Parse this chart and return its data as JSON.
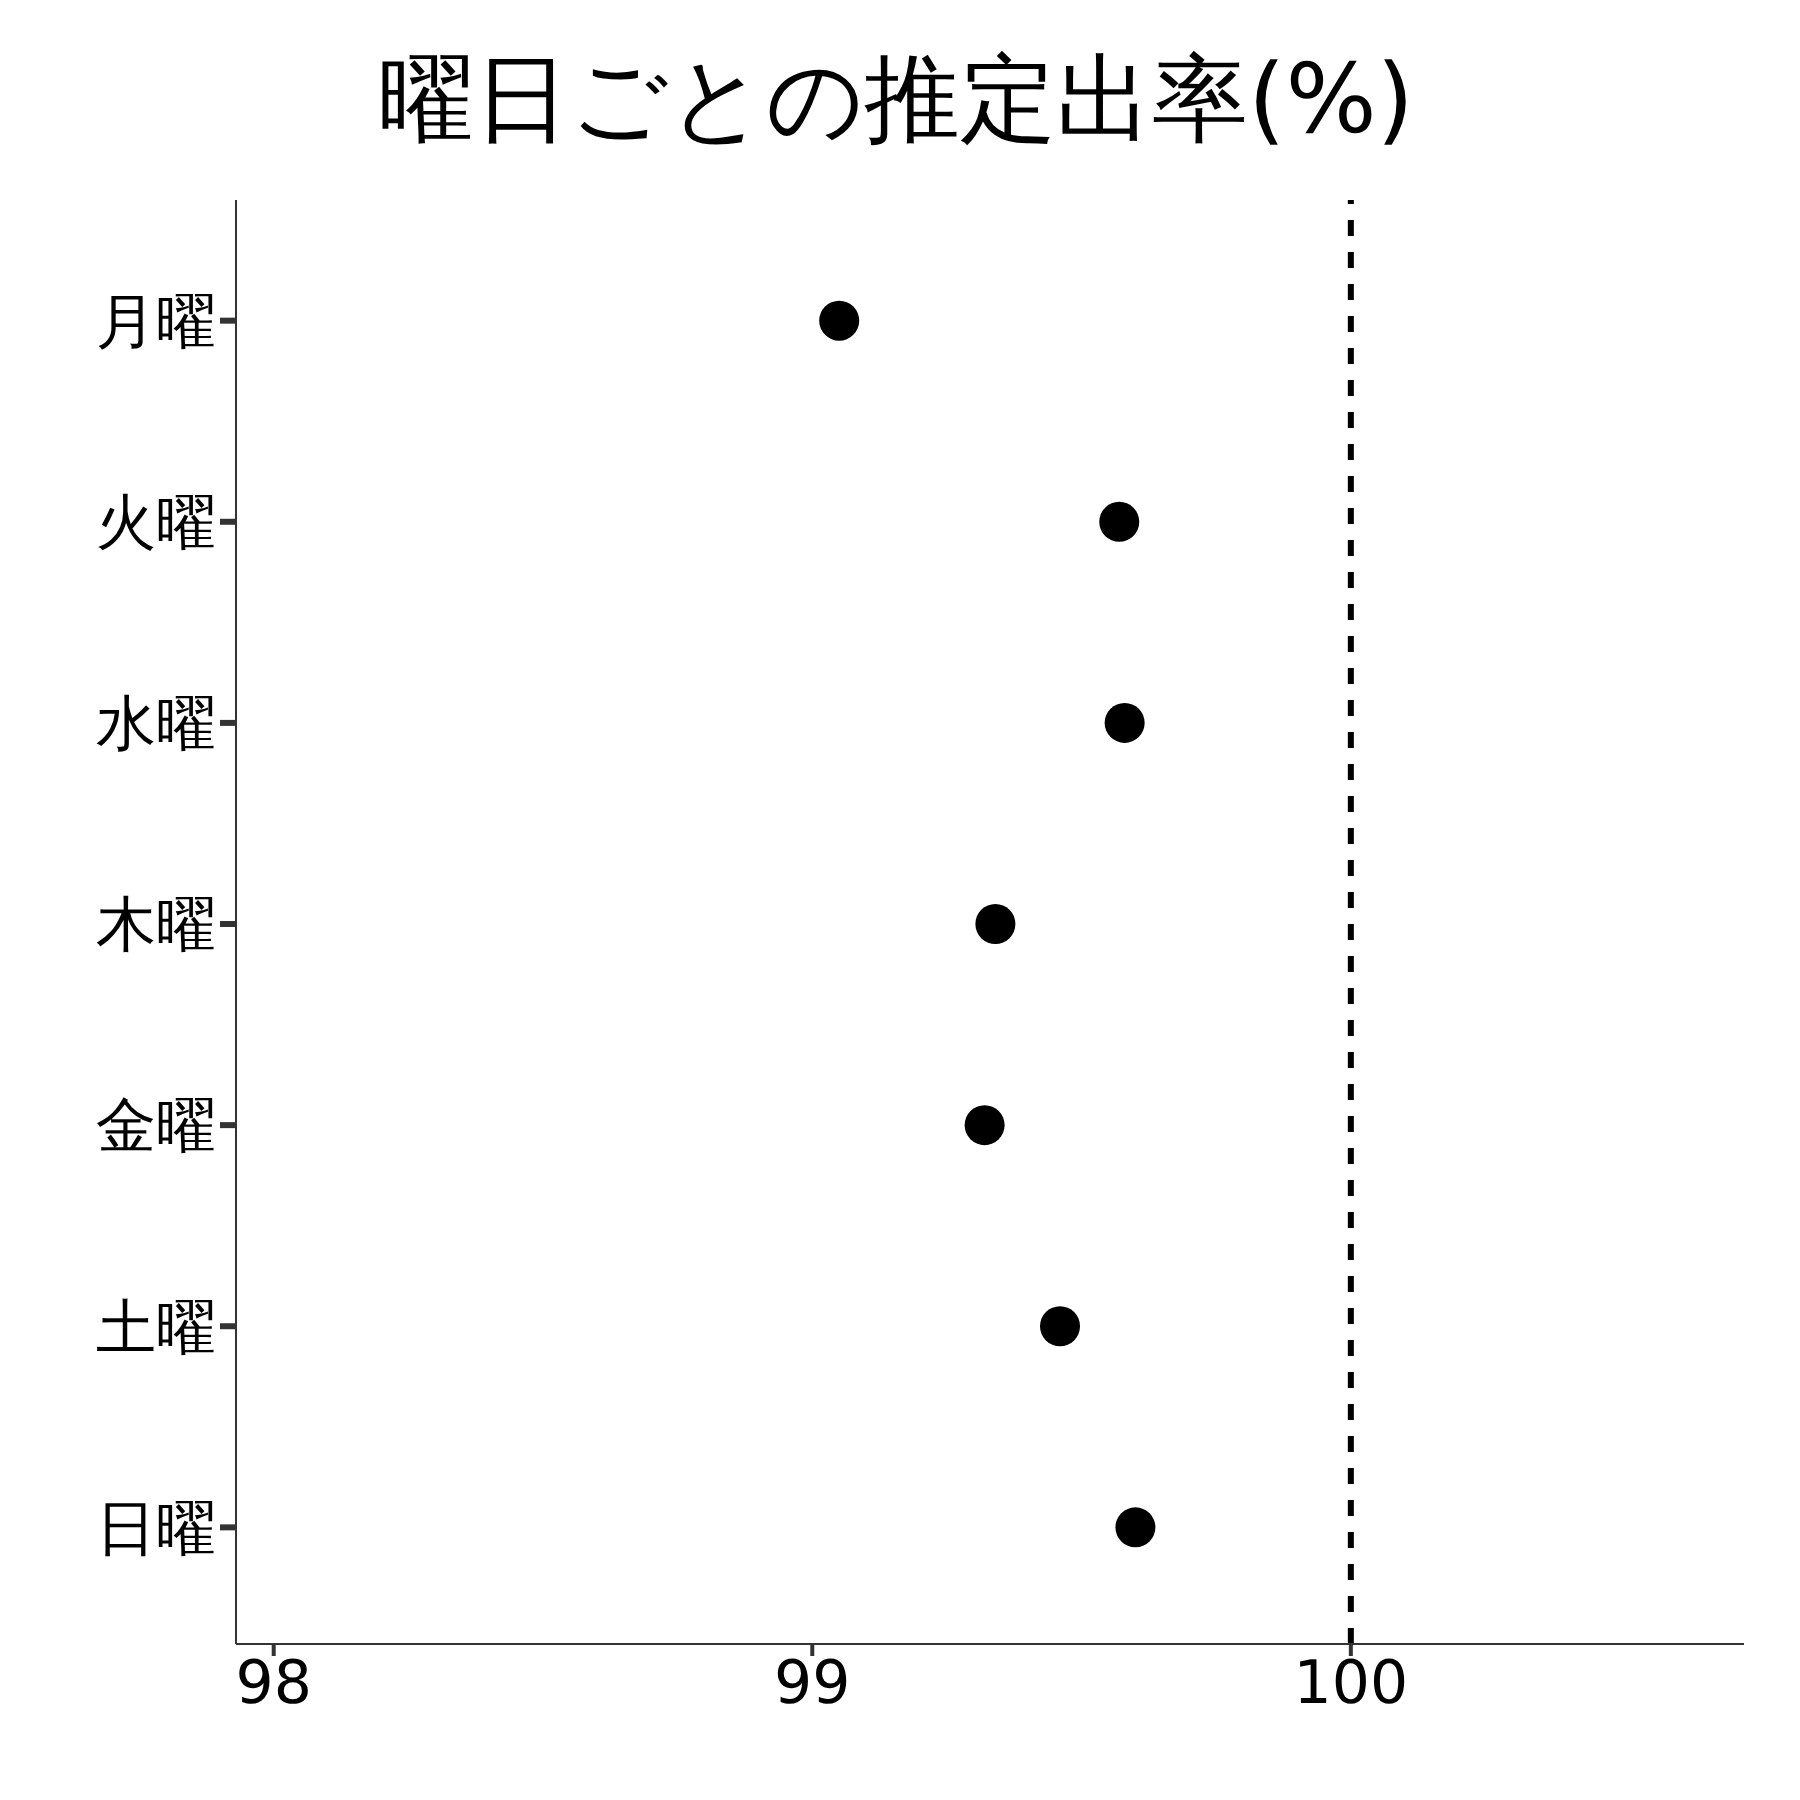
{
  "chart_data": {
    "type": "scatter",
    "title": "曜日ごとの推定出率(%)",
    "orientation": "horizontal",
    "categories": [
      "月曜",
      "火曜",
      "水曜",
      "木曜",
      "金曜",
      "土曜",
      "日曜"
    ],
    "series": [
      {
        "color": "#000000",
        "values": [
          99.05,
          99.57,
          99.58,
          99.34,
          99.32,
          99.46,
          99.6
        ]
      }
    ],
    "xlim": [
      97.93,
      100.73
    ],
    "xticks": [
      98,
      99,
      100
    ],
    "ref_lines": [
      {
        "axis": "x",
        "value": 100,
        "line_style": "dashed",
        "color": "#000000"
      }
    ],
    "marker": "circle",
    "grid": false,
    "legend": false
  }
}
